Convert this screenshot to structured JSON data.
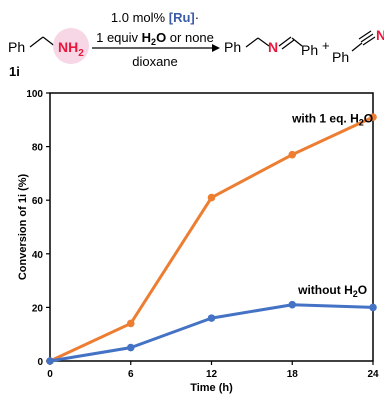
{
  "scheme": {
    "reactant_prefix": "Ph",
    "reactant_group": "NH",
    "reactant_group_sub": "2",
    "compound_label": "1i",
    "conditions_line1_prefix": "1.0 mol% ",
    "conditions_line1_catalyst": "[Ru]",
    "conditions_line1_suffix": "·",
    "conditions_line2_prefix": "1 equiv ",
    "conditions_line2_h": "H",
    "conditions_line2_sub": "2",
    "conditions_line2_o": "O",
    "conditions_line2_suffix": " or none",
    "solvent": "dioxane",
    "product1_ph_left": "Ph",
    "product1_n": "N",
    "product1_ph_right": "Ph",
    "plus": "+",
    "product2_ph": "Ph",
    "product2_n": "N"
  },
  "colors": {
    "with_water": "#ED7D31",
    "without_water": "#4472C4",
    "ru_label": "#3B5BA9",
    "nitrogen": "#E8173C",
    "nh2_circle": "#F7D6E6"
  },
  "chart_data": {
    "type": "line",
    "x": [
      0,
      6,
      12,
      18,
      24
    ],
    "xlabel": "Time (h)",
    "ylabel": "Conversion of 1i (%)",
    "xlim": [
      0,
      24
    ],
    "ylim": [
      0,
      100
    ],
    "xticks": [
      0,
      6,
      12,
      18,
      24
    ],
    "yticks": [
      0,
      20,
      40,
      60,
      80,
      100
    ],
    "grid": false,
    "series": [
      {
        "name": "with 1 eq. H2O",
        "label_main": "with 1 eq. H",
        "label_sub": "2",
        "label_end": "O",
        "values": [
          0,
          14,
          61,
          77,
          91
        ]
      },
      {
        "name": "without H2O",
        "label_main": "without H",
        "label_sub": "2",
        "label_end": "O",
        "values": [
          0,
          5,
          16,
          21,
          20
        ]
      }
    ]
  }
}
